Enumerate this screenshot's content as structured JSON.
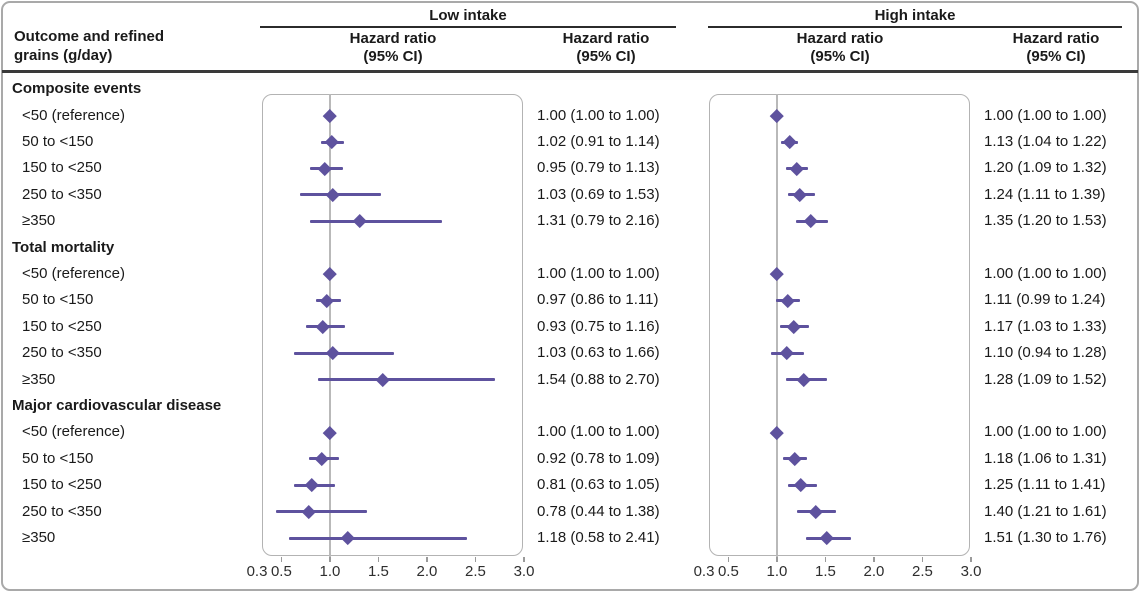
{
  "header": {
    "row_label_title_line1": "Outcome and refined",
    "row_label_title_line2": "grains (g/day)",
    "col1_title": "Low intake",
    "col2_title": "High intake",
    "subheader_line1": "Hazard ratio",
    "subheader_line2": "(95% CI)"
  },
  "colors": {
    "marker_purple": "#5e529e",
    "reference_line_gray": "#b9b9b9",
    "panel_border_gray": "#b3b3b3",
    "dark_rule": "#3a3a3a",
    "text": "#1a1a1a"
  },
  "chart_data": {
    "type": "forest",
    "x_axis": {
      "scale": "linear",
      "min": 0.3,
      "max": 3.0,
      "tick_labels": [
        0.3,
        0.5,
        1.0,
        1.5,
        2.0,
        2.5,
        3.0
      ],
      "tick_marks": [
        0.5,
        1.0,
        1.5,
        2.0,
        2.5,
        3.0
      ],
      "reference_value": 1.0
    },
    "panels": [
      "Low intake",
      "High intake"
    ],
    "groups": [
      {
        "label": "Composite events",
        "rows": [
          {
            "label": "<50 (reference)",
            "low": {
              "hr": 1.0,
              "lo": 1.0,
              "hi": 1.0,
              "text": "1.00 (1.00 to 1.00)"
            },
            "high": {
              "hr": 1.0,
              "lo": 1.0,
              "hi": 1.0,
              "text": "1.00 (1.00 to 1.00)"
            }
          },
          {
            "label": "50 to <150",
            "low": {
              "hr": 1.02,
              "lo": 0.91,
              "hi": 1.14,
              "text": "1.02 (0.91 to 1.14)"
            },
            "high": {
              "hr": 1.13,
              "lo": 1.04,
              "hi": 1.22,
              "text": "1.13 (1.04 to 1.22)"
            }
          },
          {
            "label": "150 to <250",
            "low": {
              "hr": 0.95,
              "lo": 0.79,
              "hi": 1.13,
              "text": "0.95 (0.79 to 1.13)"
            },
            "high": {
              "hr": 1.2,
              "lo": 1.09,
              "hi": 1.32,
              "text": "1.20 (1.09 to 1.32)"
            }
          },
          {
            "label": "250 to <350",
            "low": {
              "hr": 1.03,
              "lo": 0.69,
              "hi": 1.53,
              "text": "1.03 (0.69 to 1.53)"
            },
            "high": {
              "hr": 1.24,
              "lo": 1.11,
              "hi": 1.39,
              "text": "1.24 (1.11 to 1.39)"
            }
          },
          {
            "label": "≥350",
            "low": {
              "hr": 1.31,
              "lo": 0.79,
              "hi": 2.16,
              "text": "1.31 (0.79 to 2.16)"
            },
            "high": {
              "hr": 1.35,
              "lo": 1.2,
              "hi": 1.53,
              "text": "1.35 (1.20 to 1.53)"
            }
          }
        ]
      },
      {
        "label": "Total mortality",
        "rows": [
          {
            "label": "<50 (reference)",
            "low": {
              "hr": 1.0,
              "lo": 1.0,
              "hi": 1.0,
              "text": "1.00 (1.00 to 1.00)"
            },
            "high": {
              "hr": 1.0,
              "lo": 1.0,
              "hi": 1.0,
              "text": "1.00 (1.00 to 1.00)"
            }
          },
          {
            "label": "50 to <150",
            "low": {
              "hr": 0.97,
              "lo": 0.86,
              "hi": 1.11,
              "text": "0.97 (0.86 to 1.11)"
            },
            "high": {
              "hr": 1.11,
              "lo": 0.99,
              "hi": 1.24,
              "text": "1.11 (0.99 to 1.24)"
            }
          },
          {
            "label": "150 to <250",
            "low": {
              "hr": 0.93,
              "lo": 0.75,
              "hi": 1.16,
              "text": "0.93 (0.75 to 1.16)"
            },
            "high": {
              "hr": 1.17,
              "lo": 1.03,
              "hi": 1.33,
              "text": "1.17 (1.03 to 1.33)"
            }
          },
          {
            "label": "250 to <350",
            "low": {
              "hr": 1.03,
              "lo": 0.63,
              "hi": 1.66,
              "text": "1.03 (0.63 to 1.66)"
            },
            "high": {
              "hr": 1.1,
              "lo": 0.94,
              "hi": 1.28,
              "text": "1.10 (0.94 to 1.28)"
            }
          },
          {
            "label": "≥350",
            "low": {
              "hr": 1.54,
              "lo": 0.88,
              "hi": 2.7,
              "text": "1.54 (0.88 to 2.70)"
            },
            "high": {
              "hr": 1.28,
              "lo": 1.09,
              "hi": 1.52,
              "text": "1.28 (1.09 to 1.52)"
            }
          }
        ]
      },
      {
        "label": "Major cardiovascular disease",
        "rows": [
          {
            "label": "<50 (reference)",
            "low": {
              "hr": 1.0,
              "lo": 1.0,
              "hi": 1.0,
              "text": "1.00 (1.00 to 1.00)"
            },
            "high": {
              "hr": 1.0,
              "lo": 1.0,
              "hi": 1.0,
              "text": "1.00 (1.00 to 1.00)"
            }
          },
          {
            "label": "50 to <150",
            "low": {
              "hr": 0.92,
              "lo": 0.78,
              "hi": 1.09,
              "text": "0.92 (0.78 to 1.09)"
            },
            "high": {
              "hr": 1.18,
              "lo": 1.06,
              "hi": 1.31,
              "text": "1.18 (1.06 to 1.31)"
            }
          },
          {
            "label": "150 to <250",
            "low": {
              "hr": 0.81,
              "lo": 0.63,
              "hi": 1.05,
              "text": "0.81 (0.63 to 1.05)"
            },
            "high": {
              "hr": 1.25,
              "lo": 1.11,
              "hi": 1.41,
              "text": "1.25 (1.11 to 1.41)"
            }
          },
          {
            "label": "250 to <350",
            "low": {
              "hr": 0.78,
              "lo": 0.44,
              "hi": 1.38,
              "text": "0.78 (0.44 to 1.38)"
            },
            "high": {
              "hr": 1.4,
              "lo": 1.21,
              "hi": 1.61,
              "text": "1.40 (1.21 to 1.61)"
            }
          },
          {
            "label": "≥350",
            "low": {
              "hr": 1.18,
              "lo": 0.58,
              "hi": 2.41,
              "text": "1.18 (0.58 to 2.41)"
            },
            "high": {
              "hr": 1.51,
              "lo": 1.3,
              "hi": 1.76,
              "text": "1.51 (1.30 to 1.76)"
            }
          }
        ]
      }
    ]
  }
}
